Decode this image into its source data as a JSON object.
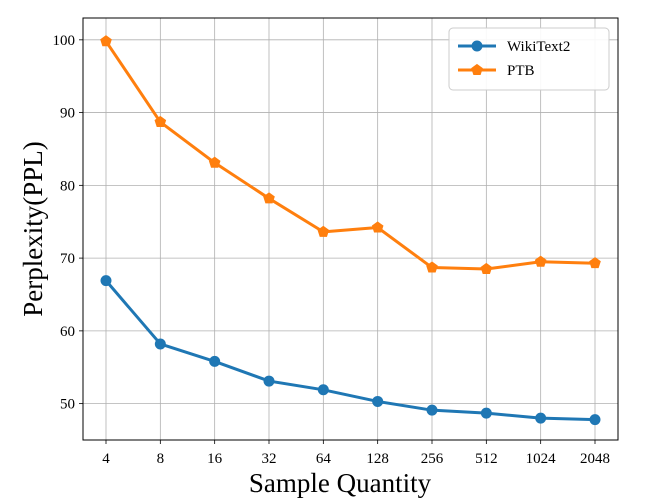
{
  "chart_data": {
    "type": "line",
    "title": "",
    "xlabel": "Sample Quantity",
    "ylabel": "Perplexity(PPL)",
    "categories": [
      "4",
      "8",
      "16",
      "32",
      "64",
      "128",
      "256",
      "512",
      "1024",
      "2048"
    ],
    "yticks": [
      "50",
      "60",
      "70",
      "80",
      "90",
      "100"
    ],
    "ylim": [
      45,
      103
    ],
    "grid": true,
    "legend_position": "top-right",
    "series": [
      {
        "name": "WikiText2",
        "color": "#1f77b4",
        "marker": "circle",
        "values": [
          66.9,
          58.2,
          55.8,
          53.1,
          51.9,
          50.3,
          49.1,
          48.7,
          48.0,
          47.8
        ]
      },
      {
        "name": "PTB",
        "color": "#ff7f0e",
        "marker": "pentagon",
        "values": [
          99.8,
          88.7,
          83.1,
          78.2,
          73.6,
          74.2,
          68.7,
          68.5,
          69.5,
          69.3
        ]
      }
    ]
  }
}
